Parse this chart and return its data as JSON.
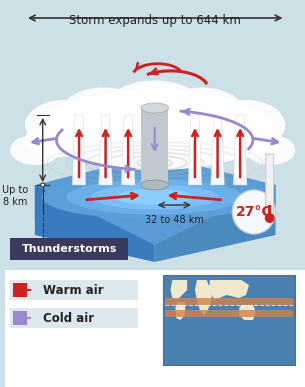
{
  "bg_color": "#cde0e8",
  "title_arrow_text": "Storm expands up to 644 km",
  "title_fontsize": 8.5,
  "up_to_8km_text": "Up to\n8 km",
  "distance_text": "32 to 48 km",
  "temp_text": "27°C",
  "thunderstorms_text": "Thunderstorms",
  "warm_air_text": "Warm air",
  "cold_air_text": "Cold air",
  "warm_color": "#cc2222",
  "cold_color": "#9988cc",
  "thunderstorms_bg": "#3a3a5c",
  "legend_bg": "#dce8ee",
  "arrow_color": "#333333",
  "map_bg": "#4a80b0",
  "map_land": "#f0e8cc",
  "map_highlight": "#d4824a",
  "thermometer_red": "#cc2222",
  "eye_color": "#aaaaaa",
  "cloud_color": "#ffffff",
  "ocean_dark": "#3a7abf",
  "ocean_mid": "#5a9bd5",
  "ocean_light": "#7ab5e5"
}
